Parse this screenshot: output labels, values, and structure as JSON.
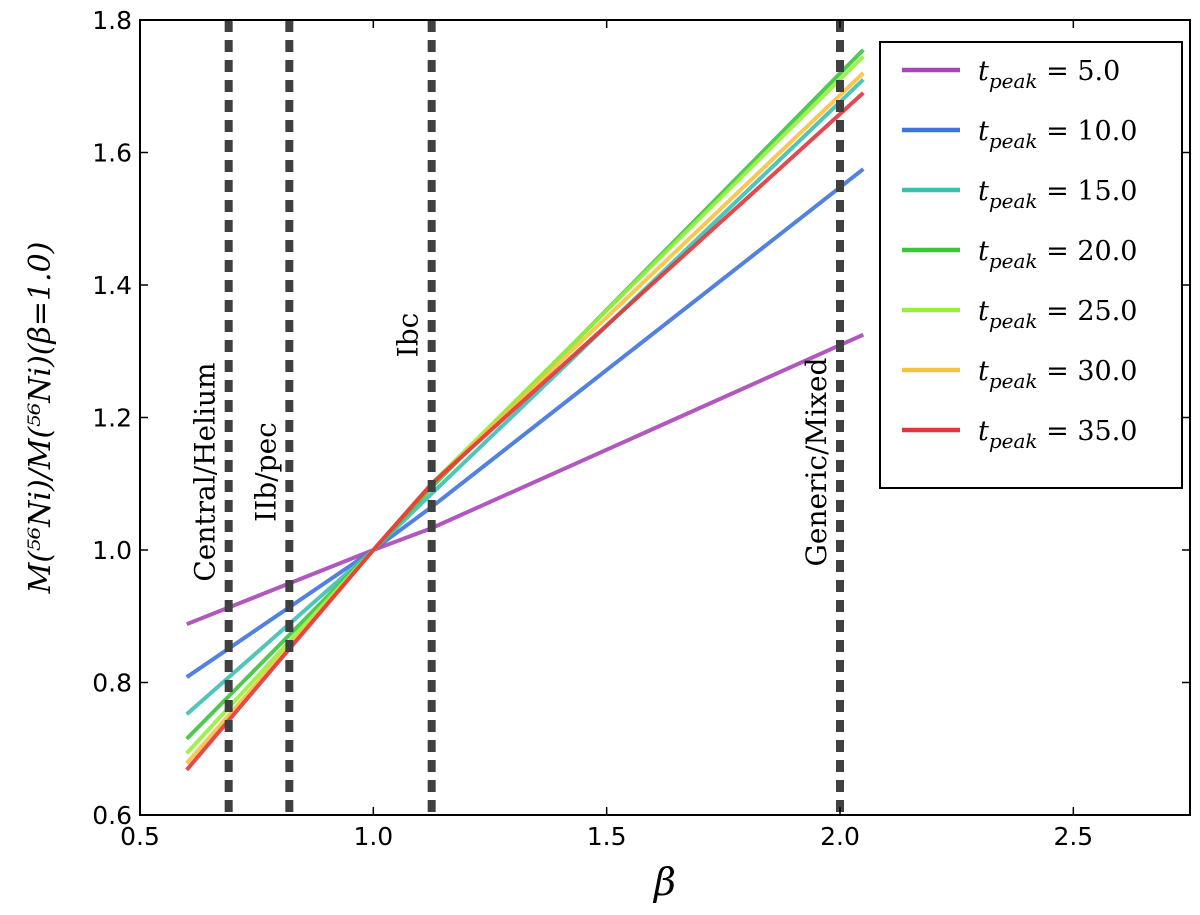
{
  "chart_data": {
    "type": "line",
    "xlabel": "β",
    "ylabel": "M(⁵⁶Ni)/M(⁵⁶Ni)(β=1.0)",
    "xlim": [
      0.5,
      2.75
    ],
    "ylim": [
      0.6,
      1.8
    ],
    "xticks": [
      "0.5",
      "1.0",
      "1.5",
      "2.0",
      "2.5"
    ],
    "yticks": [
      "0.6",
      "0.8",
      "1.0",
      "1.2",
      "1.4",
      "1.6",
      "1.8"
    ],
    "grid": false,
    "legend_position": "top-right",
    "vertical_lines": [
      {
        "x": 0.69,
        "label": "Central/Helium"
      },
      {
        "x": 0.82,
        "label": "IIb/pec"
      },
      {
        "x": 1.125,
        "label": "Ibc"
      },
      {
        "x": 2.0,
        "label": "Generic/Mixed"
      }
    ],
    "series": [
      {
        "name": "t_peak = 5.0",
        "color": "#a846b8",
        "x": [
          0.6,
          1.0,
          1.125,
          2.05
        ],
        "y": [
          0.888,
          1.0,
          1.033,
          1.325
        ]
      },
      {
        "name": "t_peak = 10.0",
        "color": "#3f73df",
        "x": [
          0.6,
          1.0,
          1.125,
          2.05
        ],
        "y": [
          0.808,
          1.0,
          1.065,
          1.575
        ]
      },
      {
        "name": "t_peak = 15.0",
        "color": "#3dbfb0",
        "x": [
          0.6,
          1.0,
          1.125,
          2.05
        ],
        "y": [
          0.752,
          1.0,
          1.085,
          1.71
        ]
      },
      {
        "name": "t_peak = 20.0",
        "color": "#3cc43c",
        "x": [
          0.6,
          1.0,
          1.125,
          2.05
        ],
        "y": [
          0.715,
          1.0,
          1.095,
          1.755
        ]
      },
      {
        "name": "t_peak = 25.0",
        "color": "#95f03c",
        "x": [
          0.6,
          1.0,
          1.125,
          2.05
        ],
        "y": [
          0.693,
          1.0,
          1.1,
          1.745
        ]
      },
      {
        "name": "t_peak = 30.0",
        "color": "#f7c23e",
        "x": [
          0.6,
          1.0,
          1.125,
          2.05
        ],
        "y": [
          0.678,
          1.0,
          1.1,
          1.72
        ]
      },
      {
        "name": "t_peak = 35.0",
        "color": "#e0363c",
        "x": [
          0.6,
          1.0,
          1.125,
          2.05
        ],
        "y": [
          0.668,
          1.0,
          1.1,
          1.69
        ]
      }
    ]
  }
}
